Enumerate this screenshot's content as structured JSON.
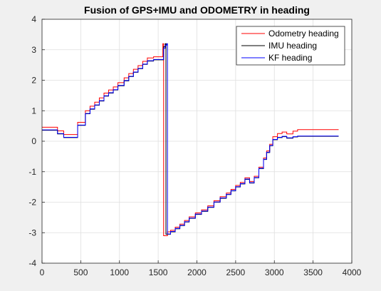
{
  "chart_data": {
    "type": "line",
    "title": "Fusion of GPS+IMU and ODOMETRY in heading",
    "xlabel": "",
    "ylabel": "",
    "xlim": [
      0,
      4000
    ],
    "ylim": [
      -4,
      4
    ],
    "xticks": [
      0,
      500,
      1000,
      1500,
      2000,
      2500,
      3000,
      3500,
      4000
    ],
    "yticks": [
      -4,
      -3,
      -2,
      -1,
      0,
      1,
      2,
      3,
      4
    ],
    "grid": true,
    "legend_position": "top-right",
    "series": [
      {
        "name": "Odometry heading",
        "color": "#ff0000",
        "x": [
          0,
          200,
          200,
          280,
          280,
          460,
          460,
          560,
          560,
          620,
          620,
          680,
          680,
          740,
          740,
          800,
          800,
          860,
          860,
          920,
          920,
          980,
          980,
          1060,
          1060,
          1120,
          1120,
          1180,
          1180,
          1240,
          1240,
          1300,
          1300,
          1360,
          1360,
          1440,
          1440,
          1560,
          1560,
          1570,
          1570,
          1590,
          1590,
          1620,
          1620,
          1660,
          1660,
          1720,
          1720,
          1780,
          1780,
          1840,
          1840,
          1900,
          1900,
          1980,
          1980,
          2060,
          2060,
          2140,
          2140,
          2220,
          2220,
          2300,
          2300,
          2380,
          2380,
          2440,
          2440,
          2500,
          2500,
          2560,
          2560,
          2620,
          2620,
          2680,
          2680,
          2740,
          2740,
          2800,
          2800,
          2860,
          2860,
          2900,
          2900,
          2940,
          2940,
          2980,
          2980,
          3040,
          3040,
          3100,
          3100,
          3160,
          3160,
          3240,
          3240,
          3300,
          3300,
          3830
        ],
        "y": [
          0.46,
          0.46,
          0.34,
          0.34,
          0.22,
          0.22,
          0.62,
          0.62,
          1.0,
          1.0,
          1.15,
          1.15,
          1.28,
          1.28,
          1.42,
          1.42,
          1.58,
          1.58,
          1.68,
          1.68,
          1.78,
          1.78,
          1.92,
          1.92,
          2.08,
          2.08,
          2.22,
          2.22,
          2.36,
          2.36,
          2.48,
          2.48,
          2.62,
          2.62,
          2.73,
          2.73,
          2.77,
          2.77,
          3.2,
          3.2,
          -3.1,
          -3.1,
          -3.1,
          -3.1,
          -2.97,
          -2.97,
          -2.92,
          -2.92,
          -2.82,
          -2.82,
          -2.72,
          -2.72,
          -2.6,
          -2.6,
          -2.48,
          -2.48,
          -2.35,
          -2.35,
          -2.25,
          -2.25,
          -2.12,
          -2.12,
          -1.95,
          -1.95,
          -1.82,
          -1.82,
          -1.7,
          -1.7,
          -1.58,
          -1.58,
          -1.45,
          -1.45,
          -1.35,
          -1.35,
          -1.2,
          -1.2,
          -1.32,
          -1.32,
          -1.15,
          -1.15,
          -0.85,
          -0.85,
          -0.55,
          -0.55,
          -0.32,
          -0.32,
          -0.1,
          -0.1,
          0.15,
          0.15,
          0.25,
          0.25,
          0.3,
          0.3,
          0.24,
          0.24,
          0.33,
          0.33,
          0.38,
          0.38
        ]
      },
      {
        "name": "IMU heading",
        "color": "#000000",
        "x": [
          0,
          200,
          200,
          280,
          280,
          460,
          460,
          560,
          560,
          620,
          620,
          680,
          680,
          740,
          740,
          800,
          800,
          860,
          860,
          920,
          920,
          980,
          980,
          1060,
          1060,
          1120,
          1120,
          1180,
          1180,
          1240,
          1240,
          1300,
          1300,
          1360,
          1360,
          1440,
          1440,
          1570,
          1570,
          1590,
          1590,
          1600,
          1600,
          1620,
          1620,
          1660,
          1660,
          1720,
          1720,
          1780,
          1780,
          1840,
          1840,
          1900,
          1900,
          1980,
          1980,
          2060,
          2060,
          2140,
          2140,
          2220,
          2220,
          2300,
          2300,
          2380,
          2380,
          2440,
          2440,
          2500,
          2500,
          2560,
          2560,
          2620,
          2620,
          2680,
          2680,
          2740,
          2740,
          2800,
          2800,
          2860,
          2860,
          2900,
          2900,
          2940,
          2940,
          2980,
          2980,
          3040,
          3040,
          3100,
          3100,
          3160,
          3160,
          3240,
          3240,
          3300,
          3300,
          3830
        ],
        "y": [
          0.36,
          0.36,
          0.24,
          0.24,
          0.12,
          0.12,
          0.52,
          0.52,
          0.9,
          0.9,
          1.05,
          1.05,
          1.18,
          1.18,
          1.32,
          1.32,
          1.48,
          1.48,
          1.58,
          1.58,
          1.68,
          1.68,
          1.82,
          1.82,
          1.98,
          1.98,
          2.12,
          2.12,
          2.26,
          2.26,
          2.38,
          2.38,
          2.52,
          2.52,
          2.63,
          2.63,
          2.67,
          2.67,
          3.1,
          3.1,
          3.2,
          3.2,
          -3.05,
          -3.05,
          -3.05,
          -3.05,
          -2.97,
          -2.97,
          -2.87,
          -2.87,
          -2.77,
          -2.77,
          -2.65,
          -2.65,
          -2.53,
          -2.53,
          -2.4,
          -2.4,
          -2.3,
          -2.3,
          -2.17,
          -2.17,
          -2.0,
          -2.0,
          -1.87,
          -1.87,
          -1.75,
          -1.75,
          -1.63,
          -1.63,
          -1.5,
          -1.5,
          -1.4,
          -1.4,
          -1.25,
          -1.25,
          -1.37,
          -1.37,
          -1.2,
          -1.2,
          -0.9,
          -0.9,
          -0.6,
          -0.6,
          -0.37,
          -0.37,
          -0.15,
          -0.15,
          0.05,
          0.05,
          0.12,
          0.12,
          0.15,
          0.15,
          0.1,
          0.1,
          0.14,
          0.14,
          0.16,
          0.16
        ]
      },
      {
        "name": "KF heading",
        "color": "#0000ff",
        "x": [
          0,
          200,
          200,
          280,
          280,
          460,
          460,
          560,
          560,
          620,
          620,
          680,
          680,
          740,
          740,
          800,
          800,
          860,
          860,
          920,
          920,
          980,
          980,
          1060,
          1060,
          1120,
          1120,
          1180,
          1180,
          1240,
          1240,
          1300,
          1300,
          1360,
          1360,
          1440,
          1440,
          1570,
          1570,
          1590,
          1590,
          1610,
          1610,
          1620,
          1620,
          1660,
          1660,
          1720,
          1720,
          1780,
          1780,
          1840,
          1840,
          1900,
          1900,
          1980,
          1980,
          2060,
          2060,
          2140,
          2140,
          2220,
          2220,
          2300,
          2300,
          2380,
          2380,
          2440,
          2440,
          2500,
          2500,
          2560,
          2560,
          2620,
          2620,
          2680,
          2680,
          2740,
          2740,
          2800,
          2800,
          2860,
          2860,
          2900,
          2900,
          2940,
          2940,
          2980,
          2980,
          3040,
          3040,
          3100,
          3100,
          3160,
          3160,
          3240,
          3240,
          3300,
          3300,
          3830
        ],
        "y": [
          0.37,
          0.37,
          0.25,
          0.25,
          0.13,
          0.13,
          0.53,
          0.53,
          0.91,
          0.91,
          1.06,
          1.06,
          1.19,
          1.19,
          1.33,
          1.33,
          1.49,
          1.49,
          1.59,
          1.59,
          1.69,
          1.69,
          1.83,
          1.83,
          1.99,
          1.99,
          2.13,
          2.13,
          2.27,
          2.27,
          2.39,
          2.39,
          2.53,
          2.53,
          2.64,
          2.64,
          2.68,
          2.68,
          3.05,
          3.05,
          3.15,
          3.15,
          3.2,
          3.2,
          -3.04,
          -3.04,
          -2.96,
          -2.96,
          -2.86,
          -2.86,
          -2.76,
          -2.76,
          -2.64,
          -2.64,
          -2.52,
          -2.52,
          -2.39,
          -2.39,
          -2.29,
          -2.29,
          -2.16,
          -2.16,
          -1.99,
          -1.99,
          -1.86,
          -1.86,
          -1.74,
          -1.74,
          -1.62,
          -1.62,
          -1.49,
          -1.49,
          -1.39,
          -1.39,
          -1.24,
          -1.24,
          -1.36,
          -1.36,
          -1.19,
          -1.19,
          -0.89,
          -0.89,
          -0.59,
          -0.59,
          -0.36,
          -0.36,
          -0.14,
          -0.14,
          0.06,
          0.06,
          0.13,
          0.13,
          0.16,
          0.16,
          0.11,
          0.11,
          0.15,
          0.15,
          0.17,
          0.17
        ]
      }
    ]
  }
}
